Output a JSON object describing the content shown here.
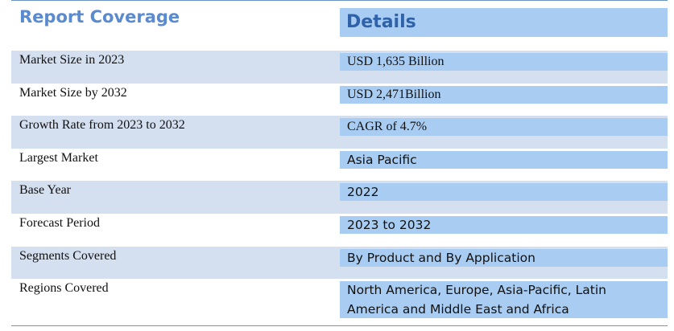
{
  "header": {
    "left": "Report Coverage",
    "right": "Details"
  },
  "rows": [
    {
      "label": "Market Size in 2023",
      "value": "USD 1,635 Billion"
    },
    {
      "label": "Market Size by 2032",
      "value": "USD 2,471Billion"
    },
    {
      "label": "Growth Rate from 2023 to 2032",
      "value": "CAGR of 4.7%"
    },
    {
      "label": "Largest Market",
      "value": "Asia Pacific"
    },
    {
      "label": "Base Year",
      "value": "2022"
    },
    {
      "label": "Forecast Period",
      "value": "2023 to 2032"
    },
    {
      "label": "Segments Covered",
      "value": "By Product and By Application"
    },
    {
      "label": "Regions Covered",
      "value": "North America, Europe, Asia-Pacific, Latin America and Middle East and Africa"
    }
  ],
  "colors": {
    "header_text_left": "#5a8ad0",
    "header_text_right": "#2f62a8",
    "value_cell_bg": "#a9cdf2",
    "shaded_row_bg": "#d4dff0"
  }
}
